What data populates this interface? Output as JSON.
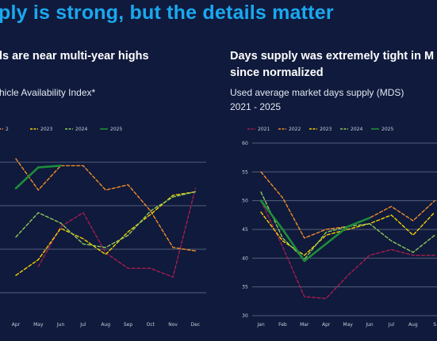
{
  "headline": "ply is strong, but the details matter",
  "left_panel": {
    "title_line1": "ls are near multi-year highs",
    "subtitle": "hicle Availability Index*"
  },
  "right_panel": {
    "title_line1": "Days supply was extremely tight in M",
    "title_line2": "since normalized",
    "subtitle_line1": "Used average market days supply (MDS)",
    "subtitle_line2": "2021 - 2025"
  },
  "colors": {
    "2021": "#a61e4d",
    "2022": "#f28c28",
    "2023": "#f5d000",
    "2024": "#8fc85a",
    "2025": "#1e8c3a",
    "grid": "#55607d",
    "headline": "#1ba8ef"
  },
  "chart_data": [
    {
      "type": "line",
      "x": [
        "Apr",
        "May",
        "Jun",
        "Jul",
        "Aug",
        "Sep",
        "Oct",
        "Nov",
        "Dec"
      ],
      "legend": [
        "2",
        "2023",
        "2024",
        "2025"
      ],
      "grid": true,
      "series": [
        {
          "name": "2021",
          "style": "dashed",
          "values": [
            null,
            105,
            128,
            136,
            113,
            104,
            104,
            99,
            150
          ]
        },
        {
          "name": "2022",
          "style": "dashed",
          "values": [
            167,
            149,
            163,
            163,
            149,
            152,
            137,
            116,
            114
          ]
        },
        {
          "name": "2023",
          "style": "dashed",
          "values": [
            100,
            109,
            127,
            121,
            112,
            125,
            135,
            146,
            148
          ]
        },
        {
          "name": "2024",
          "style": "dashed",
          "values": [
            122,
            136,
            130,
            118,
            116,
            123,
            137,
            145,
            148
          ]
        },
        {
          "name": "2025",
          "style": "solid",
          "values": [
            150,
            162,
            163,
            null,
            null,
            null,
            null,
            null,
            null
          ]
        }
      ]
    },
    {
      "type": "line",
      "x": [
        "Jan",
        "Feb",
        "Mar",
        "Apr",
        "May",
        "Jun",
        "Jul",
        "Aug",
        "S"
      ],
      "ylim": [
        30,
        60
      ],
      "yticks": [
        30,
        35,
        40,
        45,
        50,
        55,
        60
      ],
      "legend": [
        "2021",
        "2022",
        "2023",
        "2024",
        "2025"
      ],
      "grid": true,
      "series": [
        {
          "name": "2021",
          "style": "dashed",
          "values": [
            50,
            42,
            33.3,
            33,
            37,
            40.5,
            41.5,
            40.5,
            40.5
          ]
        },
        {
          "name": "2022",
          "style": "dashed",
          "values": [
            55,
            50.5,
            43.5,
            45,
            45.5,
            47,
            49,
            46.5,
            50
          ]
        },
        {
          "name": "2023",
          "style": "dashed",
          "values": [
            48,
            43,
            40.5,
            44,
            45,
            46,
            47.5,
            44,
            48
          ]
        },
        {
          "name": "2024",
          "style": "dashed",
          "values": [
            51.5,
            43.5,
            39.8,
            44.5,
            45.5,
            46,
            43,
            41,
            44
          ]
        },
        {
          "name": "2025",
          "style": "solid",
          "values": [
            50,
            45,
            39.5,
            42.5,
            45.5,
            47,
            null,
            null,
            null
          ]
        }
      ]
    }
  ]
}
